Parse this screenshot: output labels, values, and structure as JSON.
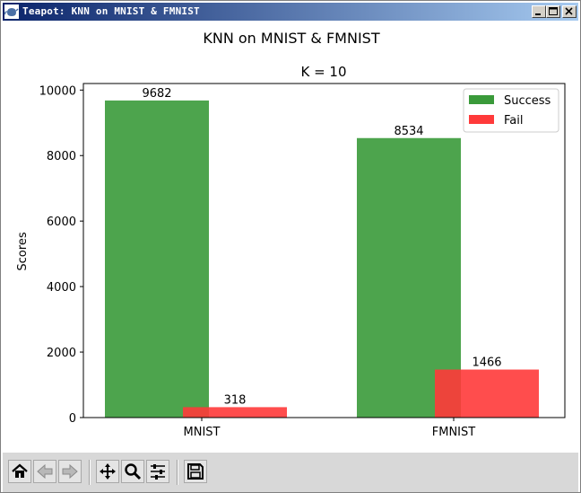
{
  "window": {
    "title": "Teapot: KNN on MNIST & FMNIST"
  },
  "figure": {
    "suptitle": "KNN on MNIST & FMNIST"
  },
  "chart_data": {
    "type": "bar",
    "title": "K = 10",
    "xlabel": "",
    "ylabel": "Scores",
    "categories": [
      "MNIST",
      "FMNIST"
    ],
    "ylim": [
      0,
      10200
    ],
    "yticks": [
      0,
      2000,
      4000,
      6000,
      8000,
      10000
    ],
    "legend_placement": "top-right",
    "grid": false,
    "series": [
      {
        "name": "Success",
        "values": [
          9682,
          8534
        ],
        "color": "#3a9a3a",
        "labels": [
          "9682",
          "8534"
        ]
      },
      {
        "name": "Fail",
        "values": [
          318,
          1466
        ],
        "color": "#ff3a3a",
        "labels": [
          "318",
          "1466"
        ]
      }
    ]
  },
  "toolbar": {
    "buttons": [
      {
        "name": "home-icon"
      },
      {
        "name": "back-arrow-icon"
      },
      {
        "name": "forward-arrow-icon"
      },
      {
        "name": "pan-icon"
      },
      {
        "name": "zoom-icon"
      },
      {
        "name": "configure-subplots-icon"
      },
      {
        "name": "save-icon"
      }
    ]
  }
}
